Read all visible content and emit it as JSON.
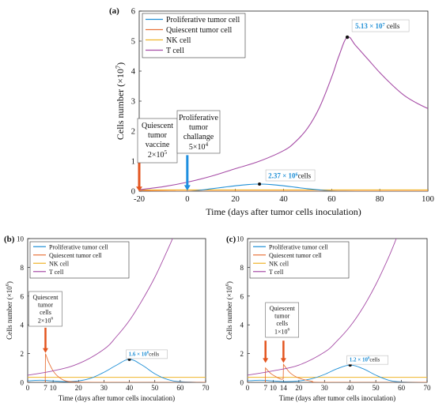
{
  "colors": {
    "proliferative": "#1f8fd6",
    "quiescent": "#e8733a",
    "nk": "#f0b429",
    "tcell": "#a64ca6",
    "arrow_red": "#e3551f",
    "arrow_blue": "#1e8fe0"
  },
  "chart_data": [
    {
      "type": "line",
      "panel_label": "(a)",
      "xlabel": "Time (days after tumor cells inoculation)",
      "ylabel": "Cells number (×10",
      "ylabel_exp": "7",
      "ylabel_close": ")",
      "xlim": [
        -20,
        100
      ],
      "ylim": [
        0,
        6
      ],
      "xticks": [
        "-20",
        "0",
        "20",
        "40",
        "60",
        "80",
        "100"
      ],
      "yticks": [
        "0",
        "1",
        "2",
        "3",
        "4",
        "5",
        "6"
      ],
      "legend_position": "top-left",
      "series": [
        {
          "name": "Proliferative tumor cell",
          "color_key": "proliferative",
          "x": [
            -20,
            0,
            5,
            10,
            15,
            20,
            25,
            30,
            35,
            40,
            45,
            50,
            55,
            60,
            65,
            70,
            100
          ],
          "y": [
            0,
            0,
            0.03,
            0.08,
            0.13,
            0.18,
            0.22,
            0.237,
            0.22,
            0.18,
            0.13,
            0.08,
            0.04,
            0.01,
            0.002,
            0,
            0
          ]
        },
        {
          "name": "Quiescent tumor cell",
          "color_key": "quiescent",
          "x": [
            -20,
            -19,
            -15,
            -10,
            -5,
            0,
            100
          ],
          "y": [
            0,
            0.02,
            0.01,
            0.005,
            0.002,
            0,
            0
          ]
        },
        {
          "name": "NK cell",
          "color_key": "nk",
          "x": [
            -20,
            100
          ],
          "y": [
            0.04,
            0.04
          ]
        },
        {
          "name": "T cell",
          "color_key": "tcell",
          "x": [
            -20,
            -10,
            0,
            10,
            20,
            30,
            40,
            45,
            50,
            55,
            60,
            63,
            66.5,
            70,
            75,
            80,
            85,
            90,
            95,
            100
          ],
          "y": [
            0.05,
            0.15,
            0.3,
            0.5,
            0.75,
            1.0,
            1.35,
            1.65,
            2.1,
            2.8,
            3.8,
            4.5,
            5.13,
            4.85,
            4.4,
            3.95,
            3.55,
            3.2,
            2.95,
            2.75
          ]
        }
      ],
      "annotations": {
        "tcell_peak": {
          "x": 66.5,
          "y": 5.13,
          "value_text": "5.13 × 10",
          "value_exp": "7",
          "suffix": " cells"
        },
        "prolif_peak": {
          "x": 30,
          "y": 0.237,
          "value_text": "2.37 × 10",
          "value_exp": "6",
          "suffix": "cells"
        },
        "vaccine": {
          "x": -20,
          "lines": [
            "Quiescent",
            "tumor",
            "vaccine"
          ],
          "dose": "2×10",
          "dose_exp": "5"
        },
        "challenge": {
          "x": 0,
          "lines": [
            "Proliferative",
            "tumor",
            "challange"
          ],
          "dose": "5×10",
          "dose_exp": "4"
        }
      }
    },
    {
      "type": "line",
      "panel_label": "(b)",
      "xlabel": "Time (days after tumor cells inoculation)",
      "ylabel": "Cells number (×10",
      "ylabel_exp": "6",
      "ylabel_close": ")",
      "xlim": [
        0,
        70
      ],
      "ylim": [
        0,
        10
      ],
      "xticks": [
        "0",
        "7",
        "10",
        "20",
        "30",
        "40",
        "50",
        "60",
        "70"
      ],
      "yticks": [
        "0",
        "2",
        "4",
        "6",
        "8",
        "10"
      ],
      "legend_position": "top-left",
      "series": [
        {
          "name": "Proliferative tumor cell",
          "color_key": "proliferative",
          "x": [
            0,
            5,
            10,
            15,
            20,
            25,
            30,
            35,
            40,
            45,
            50,
            55,
            60,
            70
          ],
          "y": [
            0.1,
            0.15,
            0.1,
            0.05,
            0.1,
            0.3,
            0.7,
            1.2,
            1.6,
            1.2,
            0.6,
            0.2,
            0.05,
            0
          ]
        },
        {
          "name": "Quiescent tumor cell",
          "color_key": "quiescent",
          "x": [
            0,
            6.9,
            7,
            8,
            10,
            12,
            15,
            20,
            30,
            70
          ],
          "y": [
            0,
            0,
            2.0,
            1.5,
            0.8,
            0.4,
            0.1,
            0.02,
            0,
            0
          ]
        },
        {
          "name": "NK cell",
          "color_key": "nk",
          "x": [
            0,
            70
          ],
          "y": [
            0.35,
            0.35
          ]
        },
        {
          "name": "T cell",
          "color_key": "tcell",
          "x": [
            0,
            10,
            20,
            30,
            35,
            40,
            45,
            50,
            55,
            57
          ],
          "y": [
            0.5,
            0.8,
            1.3,
            2.3,
            3.2,
            4.3,
            5.7,
            7.3,
            9.2,
            10
          ]
        }
      ],
      "annotations": {
        "prolif_peak": {
          "x": 40,
          "y": 1.6,
          "value_text": "1.6 × 10",
          "value_exp": "6",
          "suffix": "cells"
        },
        "doses": [
          {
            "x": 7,
            "lines": [
              "Quiescent",
              "tumor",
              "cells"
            ],
            "dose": "2×10",
            "dose_exp": "6"
          }
        ]
      }
    },
    {
      "type": "line",
      "panel_label": "(c)",
      "xlabel": "Time (days after tumor cells inoculation)",
      "ylabel": "Cells number (×10",
      "ylabel_exp": "6",
      "ylabel_close": ")",
      "xlim": [
        0,
        70
      ],
      "ylim": [
        0,
        10
      ],
      "xticks": [
        "0",
        "7",
        "10",
        "14",
        "20",
        "30",
        "40",
        "50",
        "60",
        "70"
      ],
      "yticks": [
        "0",
        "2",
        "4",
        "6",
        "8",
        "10"
      ],
      "legend_position": "top-left",
      "series": [
        {
          "name": "Proliferative tumor cell",
          "color_key": "proliferative",
          "x": [
            0,
            5,
            10,
            15,
            20,
            25,
            30,
            35,
            40,
            45,
            50,
            55,
            60,
            70
          ],
          "y": [
            0.1,
            0.15,
            0.1,
            0.05,
            0.1,
            0.25,
            0.55,
            0.95,
            1.2,
            0.95,
            0.5,
            0.15,
            0.03,
            0
          ]
        },
        {
          "name": "Quiescent tumor cell",
          "color_key": "quiescent",
          "x": [
            0,
            6.9,
            7,
            8,
            10,
            13.9,
            14,
            15,
            17,
            20,
            25,
            30,
            70
          ],
          "y": [
            0,
            0,
            1.0,
            0.8,
            0.5,
            0.25,
            1.25,
            1.0,
            0.6,
            0.3,
            0.08,
            0,
            0
          ]
        },
        {
          "name": "NK cell",
          "color_key": "nk",
          "x": [
            0,
            70
          ],
          "y": [
            0.35,
            0.35
          ]
        },
        {
          "name": "T cell",
          "color_key": "tcell",
          "x": [
            0,
            10,
            20,
            30,
            35,
            40,
            45,
            50,
            55,
            58
          ],
          "y": [
            0.5,
            0.8,
            1.2,
            2.1,
            2.9,
            3.9,
            5.2,
            6.8,
            8.7,
            10
          ]
        }
      ],
      "annotations": {
        "prolif_peak": {
          "x": 40,
          "y": 1.2,
          "value_text": "1.2 × 10",
          "value_exp": "6",
          "suffix": "cells"
        },
        "doses": [
          {
            "x": 7,
            "lines": [
              "Quiescent",
              "tumor",
              "cells"
            ],
            "dose": "1×10",
            "dose_exp": "6",
            "label_only": false
          },
          {
            "x": 14,
            "label_only": false
          }
        ]
      }
    }
  ]
}
